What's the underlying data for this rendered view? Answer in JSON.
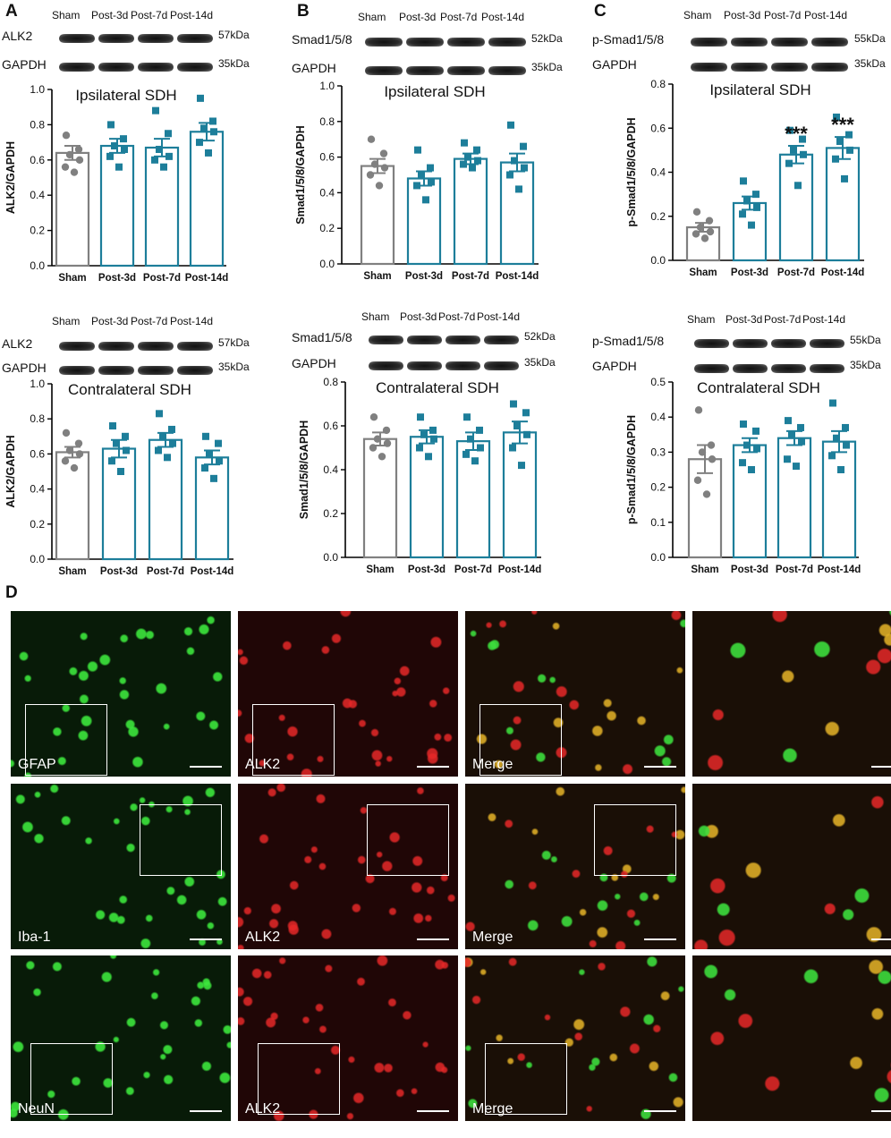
{
  "panel_labels": [
    "A",
    "B",
    "C",
    "D"
  ],
  "colors": {
    "sham": "#808080",
    "post": "#1d7e9a",
    "axis": "#000000",
    "blot": "#1a1a1a"
  },
  "blots": [
    {
      "id": "A-top",
      "lanes": [
        "Sham",
        "Post-3d",
        "Post-7d",
        "Post-14d"
      ],
      "rows": [
        {
          "name": "ALK2",
          "kda": "57kDa"
        },
        {
          "name": "GAPDH",
          "kda": "35kDa"
        }
      ]
    },
    {
      "id": "B-top",
      "lanes": [
        "Sham",
        "Post-3d",
        "Post-7d",
        "Post-14d"
      ],
      "rows": [
        {
          "name": "Smad1/5/8",
          "kda": "52kDa"
        },
        {
          "name": "GAPDH",
          "kda": "35kDa"
        }
      ]
    },
    {
      "id": "C-top",
      "lanes": [
        "Sham",
        "Post-3d",
        "Post-7d",
        "Post-14d"
      ],
      "rows": [
        {
          "name": "p-Smad1/5/8",
          "kda": "55kDa"
        },
        {
          "name": "GAPDH",
          "kda": "35kDa"
        }
      ]
    },
    {
      "id": "A-bot",
      "lanes": [
        "Sham",
        "Post-3d",
        "Post-7d",
        "Post-14d"
      ],
      "rows": [
        {
          "name": "ALK2",
          "kda": "57kDa"
        },
        {
          "name": "GAPDH",
          "kda": "35kDa"
        }
      ]
    },
    {
      "id": "B-bot",
      "lanes": [
        "Sham",
        "Post-3d",
        "Post-7d",
        "Post-14d"
      ],
      "rows": [
        {
          "name": "Smad1/5/8",
          "kda": "52kDa"
        },
        {
          "name": "GAPDH",
          "kda": "35kDa"
        }
      ]
    },
    {
      "id": "C-bot",
      "lanes": [
        "Sham",
        "Post-3d",
        "Post-7d",
        "Post-14d"
      ],
      "rows": [
        {
          "name": "p-Smad1/5/8",
          "kda": "55kDa"
        },
        {
          "name": "GAPDH",
          "kda": "35kDa"
        }
      ]
    }
  ],
  "chart_data": [
    {
      "type": "bar",
      "title": "Ipsilateral SDH",
      "ylabel": "ALK2/GAPDH",
      "categories": [
        "Sham",
        "Post-3d",
        "Post-7d",
        "Post-14d"
      ],
      "values": [
        0.64,
        0.68,
        0.67,
        0.76
      ],
      "errors": [
        0.04,
        0.04,
        0.05,
        0.05
      ],
      "ylim": [
        0,
        1.0
      ],
      "yticks": [
        "0.0",
        "0.2",
        "0.4",
        "0.6",
        "0.8",
        "1.0"
      ],
      "points": [
        [
          0.74,
          0.66,
          0.63,
          0.6,
          0.56,
          0.53
        ],
        [
          0.8,
          0.72,
          0.68,
          0.66,
          0.62,
          0.56
        ],
        [
          0.88,
          0.75,
          0.66,
          0.62,
          0.6,
          0.56
        ],
        [
          0.95,
          0.82,
          0.78,
          0.76,
          0.7,
          0.64
        ]
      ],
      "annotations": [
        "",
        "",
        "",
        ""
      ]
    },
    {
      "type": "bar",
      "title": "Ipsilateral SDH",
      "ylabel": "Smad1/5/8/GAPDH",
      "categories": [
        "Sham",
        "Post-3d",
        "Post-7d",
        "Post-14d"
      ],
      "values": [
        0.55,
        0.48,
        0.59,
        0.57
      ],
      "errors": [
        0.04,
        0.04,
        0.03,
        0.05
      ],
      "ylim": [
        0,
        1.0
      ],
      "yticks": [
        "0.0",
        "0.2",
        "0.4",
        "0.6",
        "0.8",
        "1.0"
      ],
      "points": [
        [
          0.7,
          0.62,
          0.56,
          0.54,
          0.5,
          0.44
        ],
        [
          0.64,
          0.54,
          0.5,
          0.46,
          0.44,
          0.36
        ],
        [
          0.68,
          0.64,
          0.6,
          0.58,
          0.56,
          0.54
        ],
        [
          0.78,
          0.66,
          0.58,
          0.54,
          0.5,
          0.42
        ]
      ],
      "annotations": [
        "",
        "",
        "",
        ""
      ]
    },
    {
      "type": "bar",
      "title": "Ipsilateral SDH",
      "ylabel": "p-Smad1/5/8/GAPDH",
      "categories": [
        "Sham",
        "Post-3d",
        "Post-7d",
        "Post-14d"
      ],
      "values": [
        0.15,
        0.26,
        0.48,
        0.51
      ],
      "errors": [
        0.02,
        0.03,
        0.04,
        0.05
      ],
      "ylim": [
        0,
        0.8
      ],
      "yticks": [
        "0.0",
        "0.2",
        "0.4",
        "0.6",
        "0.8"
      ],
      "points": [
        [
          0.22,
          0.18,
          0.15,
          0.13,
          0.12,
          0.1
        ],
        [
          0.36,
          0.3,
          0.27,
          0.24,
          0.21,
          0.16
        ],
        [
          0.59,
          0.55,
          0.5,
          0.48,
          0.44,
          0.34
        ],
        [
          0.65,
          0.57,
          0.54,
          0.5,
          0.46,
          0.37
        ]
      ],
      "annotations": [
        "",
        "",
        "***",
        "***"
      ]
    },
    {
      "type": "bar",
      "title": "Contralateral SDH",
      "ylabel": "ALK2/GAPDH",
      "categories": [
        "Sham",
        "Post-3d",
        "Post-7d",
        "Post-14d"
      ],
      "values": [
        0.61,
        0.63,
        0.68,
        0.58
      ],
      "errors": [
        0.03,
        0.05,
        0.04,
        0.04
      ],
      "ylim": [
        0,
        1.0
      ],
      "yticks": [
        "0.0",
        "0.2",
        "0.4",
        "0.6",
        "0.8",
        "1.0"
      ],
      "points": [
        [
          0.72,
          0.66,
          0.62,
          0.6,
          0.56,
          0.52
        ],
        [
          0.76,
          0.7,
          0.66,
          0.62,
          0.56,
          0.5
        ],
        [
          0.83,
          0.74,
          0.7,
          0.66,
          0.62,
          0.58
        ],
        [
          0.7,
          0.66,
          0.6,
          0.56,
          0.52,
          0.46
        ]
      ],
      "annotations": [
        "",
        "",
        "",
        ""
      ]
    },
    {
      "type": "bar",
      "title": "Contralateral SDH",
      "ylabel": "Smad1/5/8/GAPDH",
      "categories": [
        "Sham",
        "Post-3d",
        "Post-7d",
        "Post-14d"
      ],
      "values": [
        0.54,
        0.55,
        0.53,
        0.57
      ],
      "errors": [
        0.03,
        0.03,
        0.04,
        0.05
      ],
      "ylim": [
        0,
        0.8
      ],
      "yticks": [
        "0.0",
        "0.2",
        "0.4",
        "0.6",
        "0.8"
      ],
      "points": [
        [
          0.64,
          0.58,
          0.54,
          0.52,
          0.5,
          0.46
        ],
        [
          0.64,
          0.58,
          0.56,
          0.54,
          0.5,
          0.46
        ],
        [
          0.64,
          0.58,
          0.54,
          0.5,
          0.47,
          0.44
        ],
        [
          0.7,
          0.66,
          0.6,
          0.56,
          0.5,
          0.42
        ]
      ],
      "annotations": [
        "",
        "",
        "",
        ""
      ]
    },
    {
      "type": "bar",
      "title": "Contralateral SDH",
      "ylabel": "p-Smad1/5/8/GAPDH",
      "categories": [
        "Sham",
        "Post-3d",
        "Post-7d",
        "Post-14d"
      ],
      "values": [
        0.28,
        0.32,
        0.34,
        0.33
      ],
      "errors": [
        0.04,
        0.02,
        0.02,
        0.03
      ],
      "ylim": [
        0,
        0.5
      ],
      "yticks": [
        "0.0",
        "0.1",
        "0.2",
        "0.3",
        "0.4",
        "0.5"
      ],
      "points": [
        [
          0.42,
          0.32,
          0.3,
          0.28,
          0.22,
          0.18
        ],
        [
          0.38,
          0.36,
          0.32,
          0.31,
          0.27,
          0.25
        ],
        [
          0.39,
          0.37,
          0.35,
          0.33,
          0.28,
          0.26
        ],
        [
          0.44,
          0.37,
          0.34,
          0.32,
          0.29,
          0.25
        ]
      ],
      "annotations": [
        "",
        "",
        "",
        ""
      ]
    }
  ],
  "micrographs": [
    {
      "label": "GFAP",
      "channel": "green"
    },
    {
      "label": "ALK2",
      "channel": "red"
    },
    {
      "label": "Merge",
      "channel": "merge"
    },
    {
      "label": "",
      "channel": "merge-zoom"
    },
    {
      "label": "Iba-1",
      "channel": "green"
    },
    {
      "label": "ALK2",
      "channel": "red"
    },
    {
      "label": "Merge",
      "channel": "merge"
    },
    {
      "label": "",
      "channel": "merge-zoom"
    },
    {
      "label": "NeuN",
      "channel": "green"
    },
    {
      "label": "ALK2",
      "channel": "red"
    },
    {
      "label": "Merge",
      "channel": "merge"
    },
    {
      "label": "",
      "channel": "merge-zoom"
    }
  ]
}
